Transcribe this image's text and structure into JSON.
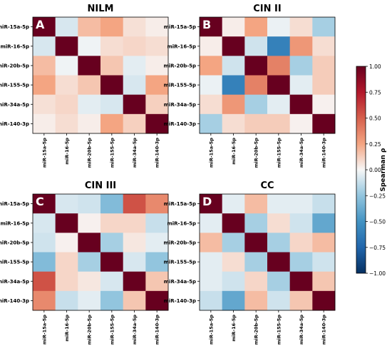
{
  "chart_data": [
    {
      "type": "heatmap",
      "panel_letter": "A",
      "title": "NILM",
      "rows": [
        "miR-15a-5p",
        "miR-16-5p",
        "miR-20b-5p",
        "miR-155-5p",
        "miR-34a-5p",
        "miR-140-3p"
      ],
      "columns": [
        "miR-15a-5p",
        "miR-16-5p",
        "miR-20b-5p",
        "miR-155-5p",
        "miR-34a-5p",
        "miR-140-3p"
      ],
      "values": [
        [
          1.0,
          -0.08,
          0.18,
          0.25,
          0.07,
          0.03
        ],
        [
          -0.08,
          1.0,
          -0.02,
          0.08,
          0.1,
          0.08
        ],
        [
          0.18,
          -0.02,
          1.0,
          0.15,
          -0.05,
          0.03
        ],
        [
          0.25,
          0.08,
          0.15,
          1.0,
          -0.08,
          0.25
        ],
        [
          0.07,
          0.1,
          -0.05,
          -0.08,
          1.0,
          0.12
        ],
        [
          0.03,
          0.08,
          0.03,
          0.25,
          0.12,
          1.0
        ]
      ]
    },
    {
      "type": "heatmap",
      "panel_letter": "B",
      "title": "CIN II",
      "rows": [
        "miR-15a-5p",
        "miR-16-5p",
        "miR-20b-5p",
        "miR-155-5p",
        "miR-34a-5p",
        "miR-140-3p"
      ],
      "columns": [
        "miR-15a-5p",
        "miR-16-5p",
        "miR-20b-5p",
        "miR-155-5p",
        "miR-34a-5p",
        "miR-140-3p"
      ],
      "values": [
        [
          1.0,
          0.03,
          0.25,
          -0.03,
          0.08,
          -0.2
        ],
        [
          0.03,
          1.0,
          -0.1,
          -0.6,
          0.3,
          0.08
        ],
        [
          0.25,
          -0.1,
          1.0,
          0.38,
          -0.2,
          0.13
        ],
        [
          -0.03,
          -0.6,
          0.38,
          1.0,
          -0.05,
          0.13
        ],
        [
          0.08,
          0.3,
          -0.2,
          -0.05,
          1.0,
          0.02
        ],
        [
          -0.2,
          0.08,
          0.13,
          0.13,
          0.02,
          1.0
        ]
      ]
    },
    {
      "type": "heatmap",
      "panel_letter": "C",
      "title": "CIN III",
      "rows": [
        "miR-15a-5p",
        "miR-16-5p",
        "miR-20b-5p",
        "miR-155-5p",
        "miR-34a-5p",
        "miR-140-3p"
      ],
      "columns": [
        "miR-15a-5p",
        "miR-16-5p",
        "miR-20b-5p",
        "miR-155-5p",
        "miR-34a-5p",
        "miR-140-3p"
      ],
      "values": [
        [
          1.0,
          -0.08,
          -0.1,
          -0.3,
          0.55,
          0.35
        ],
        [
          -0.08,
          1.0,
          0.02,
          0.1,
          0.1,
          -0.12
        ],
        [
          -0.1,
          0.02,
          1.0,
          -0.2,
          0.05,
          -0.05
        ],
        [
          -0.3,
          0.1,
          -0.2,
          1.0,
          -0.08,
          -0.25
        ],
        [
          0.55,
          0.1,
          0.05,
          -0.08,
          1.0,
          0.15
        ],
        [
          0.35,
          -0.12,
          -0.05,
          -0.25,
          0.15,
          1.0
        ]
      ]
    },
    {
      "type": "heatmap",
      "panel_letter": "D",
      "title": "CC",
      "rows": [
        "miR-15a-5p",
        "miR-16-5p",
        "miR-20b-5p",
        "miR-155-5p",
        "miR-34a-5p",
        "miR-140-3p"
      ],
      "columns": [
        "miR-15a-5p",
        "miR-16-5p",
        "miR-20b-5p",
        "miR-155-5p",
        "miR-34a-5p",
        "miR-140-3p"
      ],
      "values": [
        [
          1.0,
          -0.05,
          0.18,
          -0.05,
          -0.05,
          -0.12
        ],
        [
          -0.05,
          1.0,
          -0.2,
          0.08,
          -0.1,
          -0.4
        ],
        [
          0.18,
          -0.2,
          1.0,
          -0.2,
          0.1,
          0.18
        ],
        [
          -0.05,
          0.08,
          -0.2,
          1.0,
          -0.2,
          -0.1
        ],
        [
          -0.05,
          -0.1,
          0.1,
          -0.2,
          1.0,
          0.15
        ],
        [
          -0.12,
          -0.4,
          0.18,
          -0.1,
          0.15,
          1.0
        ]
      ]
    }
  ],
  "colorbar": {
    "label": "Spearman ρ",
    "range": [
      -1.0,
      1.0
    ],
    "colormap": "RdBu_r",
    "ticks": [
      "1.00",
      "0.75",
      "0.50",
      "0.25",
      "0.00",
      "−0.25",
      "−0.50",
      "−0.75",
      "−1.00"
    ],
    "tick_values": [
      1.0,
      0.75,
      0.5,
      0.25,
      0.0,
      -0.25,
      -0.5,
      -0.75,
      -1.0
    ]
  }
}
